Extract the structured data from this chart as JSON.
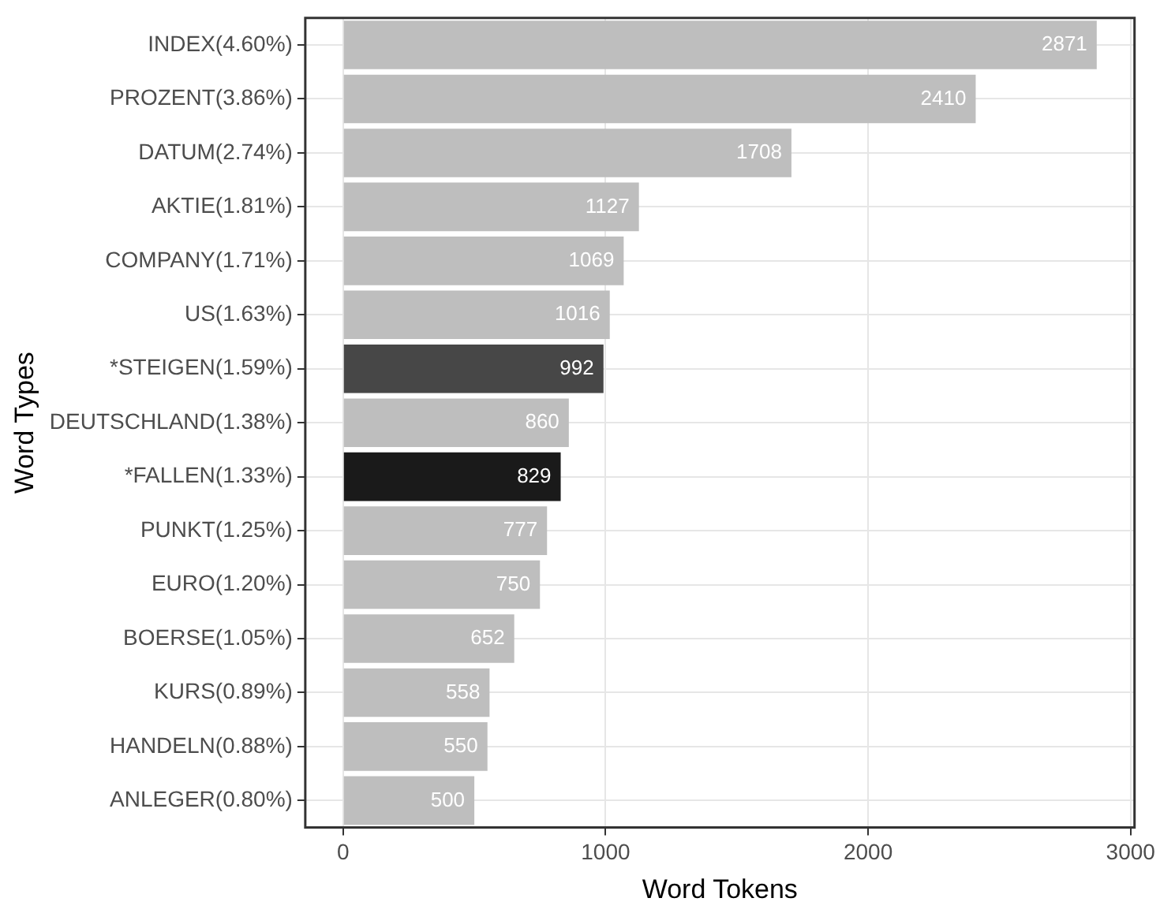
{
  "chart_data": {
    "type": "bar",
    "orientation": "horizontal",
    "xlabel": "Word Tokens",
    "ylabel": "Word Types",
    "categories": [
      "INDEX(4.60%)",
      "PROZENT(3.86%)",
      "DATUM(2.74%)",
      "AKTIE(1.81%)",
      "COMPANY(1.71%)",
      "US(1.63%)",
      "*STEIGEN(1.59%)",
      "DEUTSCHLAND(1.38%)",
      "*FALLEN(1.33%)",
      "PUNKT(1.25%)",
      "EURO(1.20%)",
      "BOERSE(1.05%)",
      "KURS(0.89%)",
      "HANDELN(0.88%)",
      "ANLEGER(0.80%)"
    ],
    "values": [
      2871,
      2410,
      1708,
      1127,
      1069,
      1016,
      992,
      860,
      829,
      777,
      750,
      652,
      558,
      550,
      500
    ],
    "colors": [
      "#bebebe",
      "#bebebe",
      "#bebebe",
      "#bebebe",
      "#bebebe",
      "#bebebe",
      "#474747",
      "#bebebe",
      "#1a1a1a",
      "#bebebe",
      "#bebebe",
      "#bebebe",
      "#bebebe",
      "#bebebe",
      "#bebebe"
    ],
    "xlim": [
      -144,
      3015
    ],
    "xticks": [
      0,
      1000,
      2000,
      3000
    ],
    "grid": true,
    "data_labels": true,
    "legend": false
  }
}
